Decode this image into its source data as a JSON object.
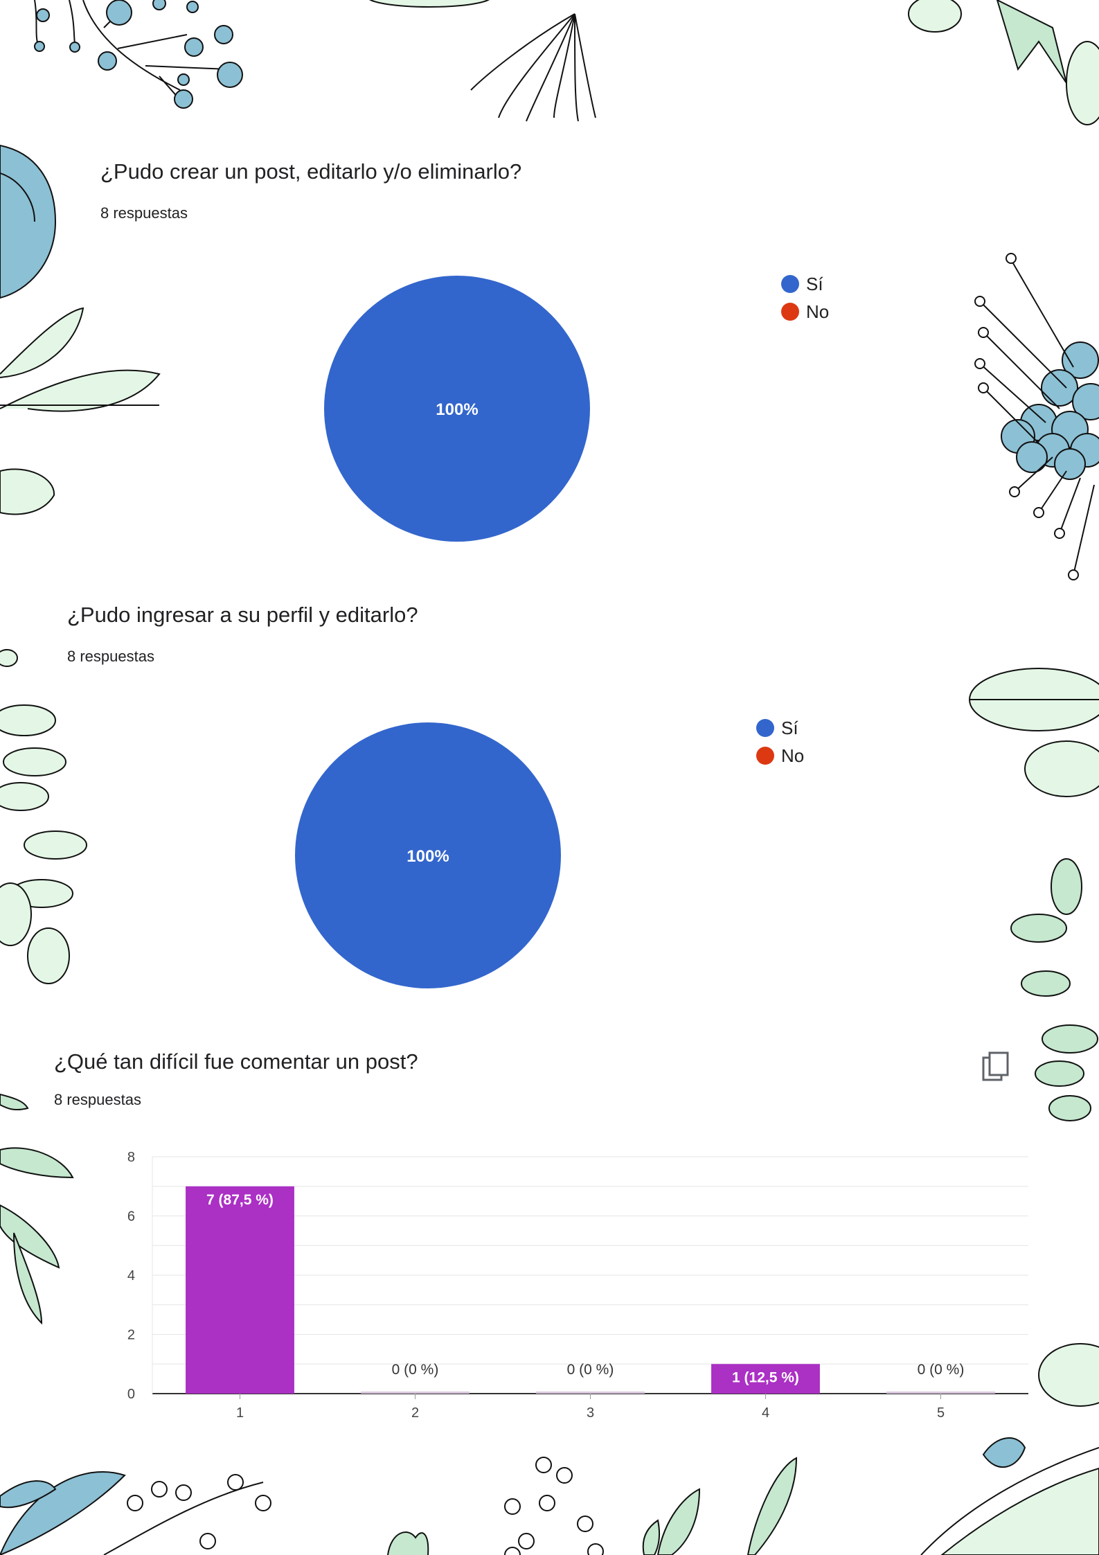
{
  "colors": {
    "pie_si": "#3366cc",
    "pie_no": "#dc3912",
    "bar": "#ab30c4",
    "leaf_green": "#e4f7e6",
    "leaf_blue": "#8cc0d4"
  },
  "q1": {
    "title": "¿Pudo crear un post, editarlo y/o eliminarlo?",
    "count": "8 respuestas",
    "legend": [
      {
        "label": "Sí"
      },
      {
        "label": "No"
      }
    ]
  },
  "q2": {
    "title": "¿Pudo ingresar a su perfil y editarlo?",
    "count": "8 respuestas",
    "legend": [
      {
        "label": "Sí"
      },
      {
        "label": "No"
      }
    ]
  },
  "q3": {
    "title": "¿Qué tan difícil fue comentar un post?",
    "count": "8 respuestas",
    "copy_icon": "copy-icon"
  },
  "chart_data": [
    {
      "type": "pie",
      "title": "¿Pudo crear un post, editarlo y/o eliminarlo?",
      "categories": [
        "Sí",
        "No"
      ],
      "values": [
        100,
        0
      ],
      "slice_labels": [
        "100%",
        ""
      ],
      "legend_position": "top-right"
    },
    {
      "type": "pie",
      "title": "¿Pudo ingresar a su perfil y editarlo?",
      "categories": [
        "Sí",
        "No"
      ],
      "values": [
        100,
        0
      ],
      "slice_labels": [
        "100%",
        ""
      ],
      "legend_position": "top-right"
    },
    {
      "type": "bar",
      "title": "¿Qué tan difícil fue comentar un post?",
      "categories": [
        "1",
        "2",
        "3",
        "4",
        "5"
      ],
      "values": [
        7,
        0,
        0,
        1,
        0
      ],
      "data_labels": [
        "7 (87,5 %)",
        "0 (0 %)",
        "0 (0 %)",
        "1 (12,5 %)",
        "0 (0 %)"
      ],
      "yticks": [
        0,
        2,
        4,
        6,
        8
      ],
      "ylim": [
        0,
        8
      ],
      "grid": true
    }
  ]
}
